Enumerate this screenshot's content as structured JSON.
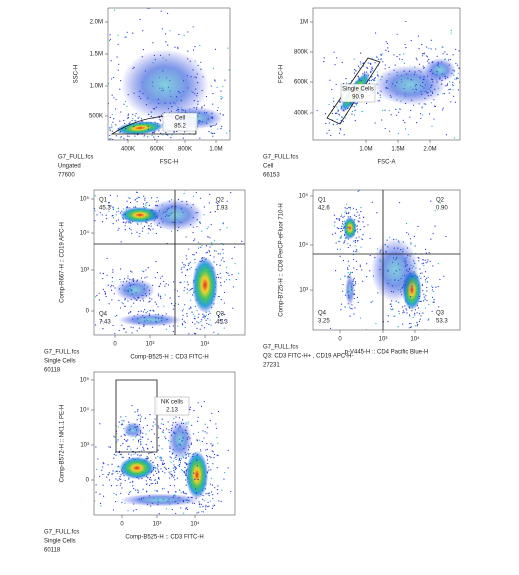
{
  "panels": [
    {
      "y_axis_label": "SSC-H",
      "x_axis_label": "FSC-H",
      "y_ticks": [
        "2.0M",
        "1.5M",
        "1.0M",
        "500K"
      ],
      "x_ticks": [
        "400K",
        "600K",
        "800K",
        "1.0M"
      ],
      "gate": {
        "label": "Cell",
        "value": "85.2"
      },
      "footer": [
        "G7_FULL.fcs",
        "Ungated",
        "77600"
      ]
    },
    {
      "y_axis_label": "FSC-H",
      "x_axis_label": "FSC-A",
      "y_ticks": [
        "1M",
        "800K",
        "600K",
        "400K"
      ],
      "x_ticks": [
        "1.0M",
        "1.5M",
        "2.0M"
      ],
      "gate": {
        "label": "Single Cells",
        "value": "90.9"
      },
      "footer": [
        "G7_FULL.fcs",
        "Cell",
        "66153"
      ]
    },
    {
      "y_axis_label": "Comp-R667-H :: CD19 APC-H",
      "x_axis_label": "Comp-B525-H :: CD3 FITC-H",
      "y_ticks": [
        "10⁵",
        "10⁴",
        "10³",
        "0"
      ],
      "x_ticks": [
        "0",
        "10³",
        "10⁴"
      ],
      "quadrants": [
        {
          "name": "Q1",
          "value": "45.3"
        },
        {
          "name": "Q2",
          "value": "1.93"
        },
        {
          "name": "Q4",
          "value": "7.43"
        },
        {
          "name": "Q3",
          "value": "45.3"
        }
      ],
      "footer": [
        "G7_FULL.fcs",
        "Single Cells",
        "60118"
      ]
    },
    {
      "y_axis_label": "Comp-B725-H :: CD8 PerCP-eFluor 710-H",
      "x_axis_label": "p-V445-H :: CD4 Pacific Blue-H",
      "y_ticks": [
        "10⁵",
        "10⁴",
        "10³"
      ],
      "x_ticks": [
        "0",
        "10³",
        "10⁴"
      ],
      "quadrants": [
        {
          "name": "Q1",
          "value": "42.6"
        },
        {
          "name": "Q2",
          "value": "0.90"
        },
        {
          "name": "Q4",
          "value": "3.25"
        },
        {
          "name": "Q3",
          "value": "53.3"
        }
      ],
      "footer": [
        "G7_FULL.fcs",
        "Q3: CD3 FITC-H+ , CD19 APC-H-",
        "27231"
      ]
    },
    {
      "y_axis_label": "Comp-B572-H :: NK1.1 PE-H",
      "x_axis_label": "Comp-B525-H :: CD3 FITC-H",
      "y_ticks": [
        "10⁵",
        "10⁴",
        "10³",
        "0"
      ],
      "x_ticks": [
        "0",
        "10³",
        "10⁴"
      ],
      "gate": {
        "label": "NK cells",
        "value": "2.13"
      },
      "footer": [
        "G7_FULL.fcs",
        "Single Cells",
        "60118"
      ]
    }
  ]
}
